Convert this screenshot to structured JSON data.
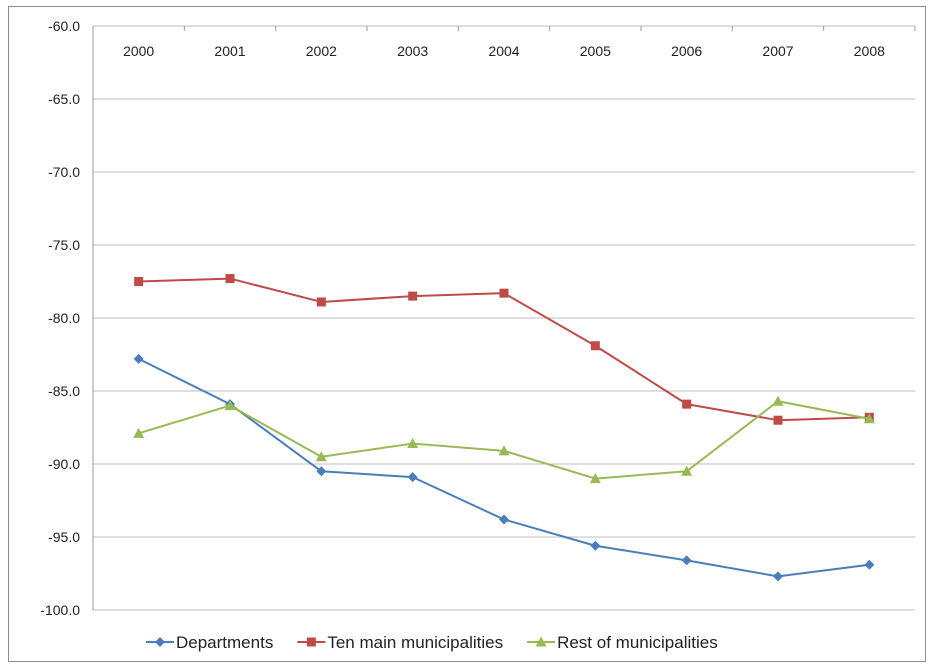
{
  "chart_data": {
    "type": "line",
    "title": "",
    "xlabel": "",
    "ylabel": "",
    "categories": [
      "2000",
      "2001",
      "2002",
      "2003",
      "2004",
      "2005",
      "2006",
      "2007",
      "2008"
    ],
    "ylim": [
      -100.0,
      -60.0
    ],
    "yticks": [
      "-60.0",
      "-65.0",
      "-70.0",
      "-75.0",
      "-80.0",
      "-85.0",
      "-90.0",
      "-95.0",
      "-100.0"
    ],
    "grid": "horizontal",
    "legend_position": "bottom",
    "x_axis_position": "top",
    "series": [
      {
        "name": "Departments",
        "color": "#4a7ebb",
        "marker": "diamond",
        "values": [
          -82.8,
          -85.9,
          -90.5,
          -90.9,
          -93.8,
          -95.6,
          -96.6,
          -97.7,
          -96.9
        ]
      },
      {
        "name": "Ten main municipalities",
        "color": "#be4b48",
        "marker": "square",
        "values": [
          -77.5,
          -77.3,
          -78.9,
          -78.5,
          -78.3,
          -81.9,
          -85.9,
          -87.0,
          -86.8
        ]
      },
      {
        "name": "Rest of municipalities",
        "color": "#98b954",
        "marker": "triangle",
        "values": [
          -87.9,
          -86.0,
          -89.5,
          -88.6,
          -89.1,
          -91.0,
          -90.5,
          -85.7,
          -86.9
        ]
      }
    ]
  }
}
